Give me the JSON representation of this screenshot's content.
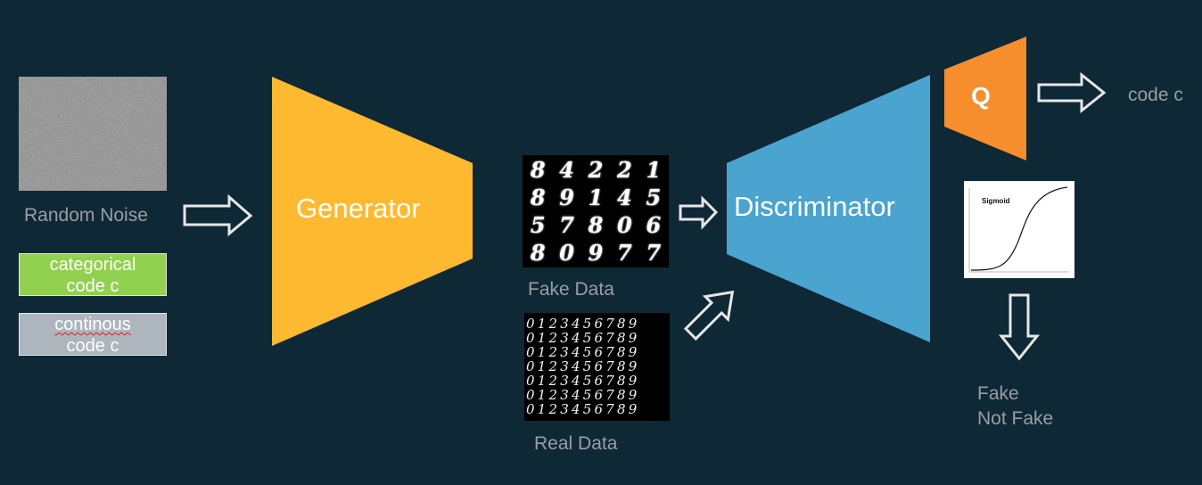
{
  "inputs": {
    "random_noise_label": "Random Noise",
    "categorical_code": {
      "line1": "categorical",
      "line2": "code c",
      "color": "#92d050"
    },
    "continuous_code": {
      "line1": "continous",
      "line2": "code c",
      "color": "#adb5bd"
    }
  },
  "generator": {
    "label": "Generator",
    "color": "#fdb92f"
  },
  "fake_data": {
    "label": "Fake Data",
    "digits": [
      "8",
      "4",
      "2",
      "2",
      "1",
      "8",
      "9",
      "1",
      "4",
      "5",
      "5",
      "7",
      "8",
      "0",
      "6",
      "8",
      "0",
      "9",
      "7",
      "7"
    ]
  },
  "real_data": {
    "label": "Real Data",
    "digit_rows": [
      "0123456789",
      "0123456789",
      "0123456789",
      "0123456789",
      "0123456789",
      "0123456789",
      "0123456789"
    ]
  },
  "discriminator": {
    "label": "Discriminator",
    "color": "#4ba3cf"
  },
  "q_network": {
    "label": "Q",
    "color": "#f68e2e",
    "output_label": "code c"
  },
  "sigmoid": {
    "title": "Sigmoid"
  },
  "output": {
    "line1": "Fake",
    "line2": "Not Fake"
  },
  "colors": {
    "background": "#0f2836",
    "arrow_outline": "#e6e6e6",
    "muted_text": "#9a9ea2"
  }
}
